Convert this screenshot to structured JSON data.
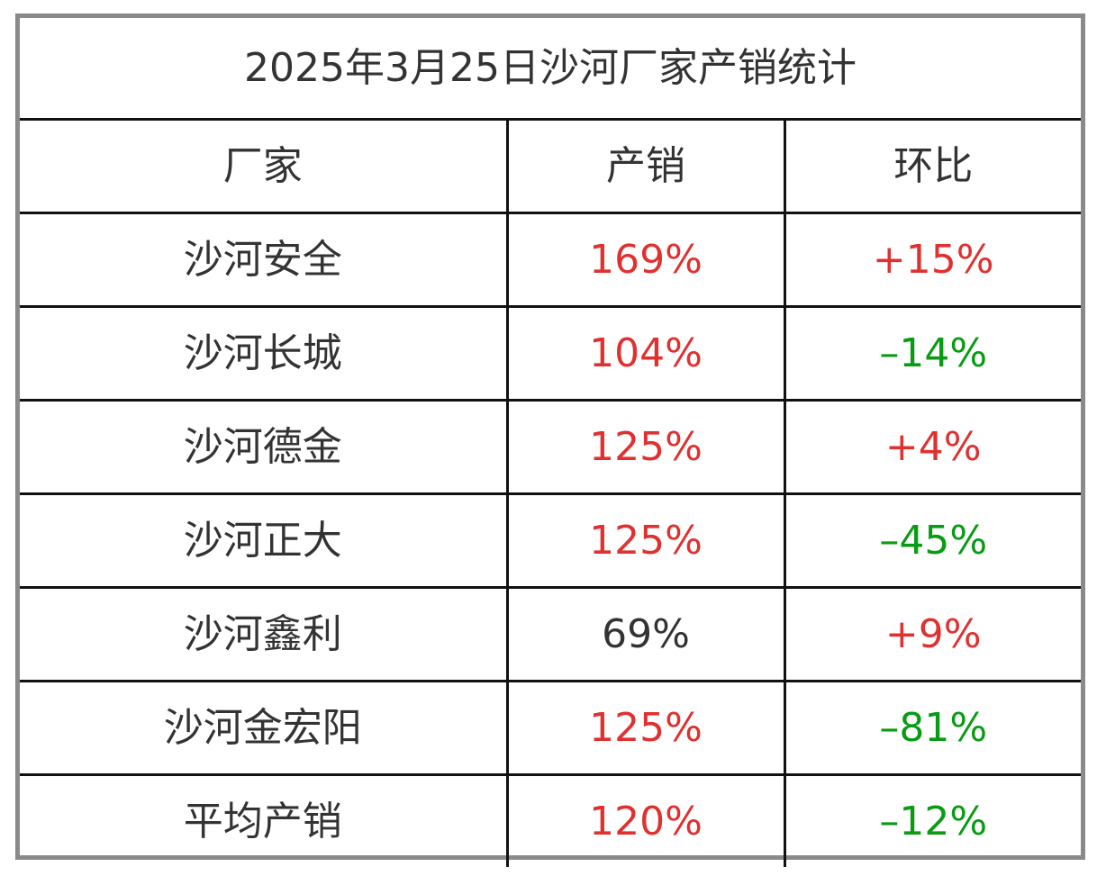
{
  "title": "2025年3月25日沙河厂家产销统计",
  "columns": [
    "厂家",
    "产销",
    "环比"
  ],
  "colors": {
    "up": "#e03131",
    "down": "#0a9b14",
    "neutral": "#333333"
  },
  "rows": [
    {
      "factory": "沙河安全",
      "ratio": "169%",
      "ratio_tone": "up",
      "change": "+15%",
      "change_tone": "up"
    },
    {
      "factory": "沙河长城",
      "ratio": "104%",
      "ratio_tone": "up",
      "change": "–14%",
      "change_tone": "down"
    },
    {
      "factory": "沙河德金",
      "ratio": "125%",
      "ratio_tone": "up",
      "change": "+4%",
      "change_tone": "up"
    },
    {
      "factory": "沙河正大",
      "ratio": "125%",
      "ratio_tone": "up",
      "change": "–45%",
      "change_tone": "down"
    },
    {
      "factory": "沙河鑫利",
      "ratio": "69%",
      "ratio_tone": "neutral",
      "change": "+9%",
      "change_tone": "up"
    },
    {
      "factory": "沙河金宏阳",
      "ratio": "125%",
      "ratio_tone": "up",
      "change": "–81%",
      "change_tone": "down"
    },
    {
      "factory": "平均产销",
      "ratio": "120%",
      "ratio_tone": "up",
      "change": "–12%",
      "change_tone": "down"
    }
  ]
}
